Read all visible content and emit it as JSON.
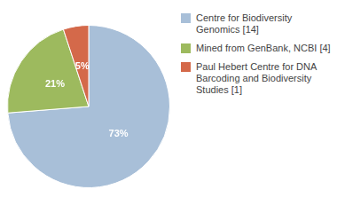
{
  "chart_data": {
    "type": "pie",
    "categories": [
      "Centre for Biodiversity\nGenomics [14]",
      "Mined from GenBank, NCBI [4]",
      "Paul Hebert Centre for DNA\nBarcoding and Biodiversity\nStudies [1]"
    ],
    "values": [
      73,
      21,
      5
    ],
    "value_labels": [
      "73%",
      "21%",
      "5%"
    ],
    "colors": [
      "#a8bfd8",
      "#9dba5e",
      "#d4694a"
    ],
    "data_labels": true,
    "legend": "right"
  }
}
